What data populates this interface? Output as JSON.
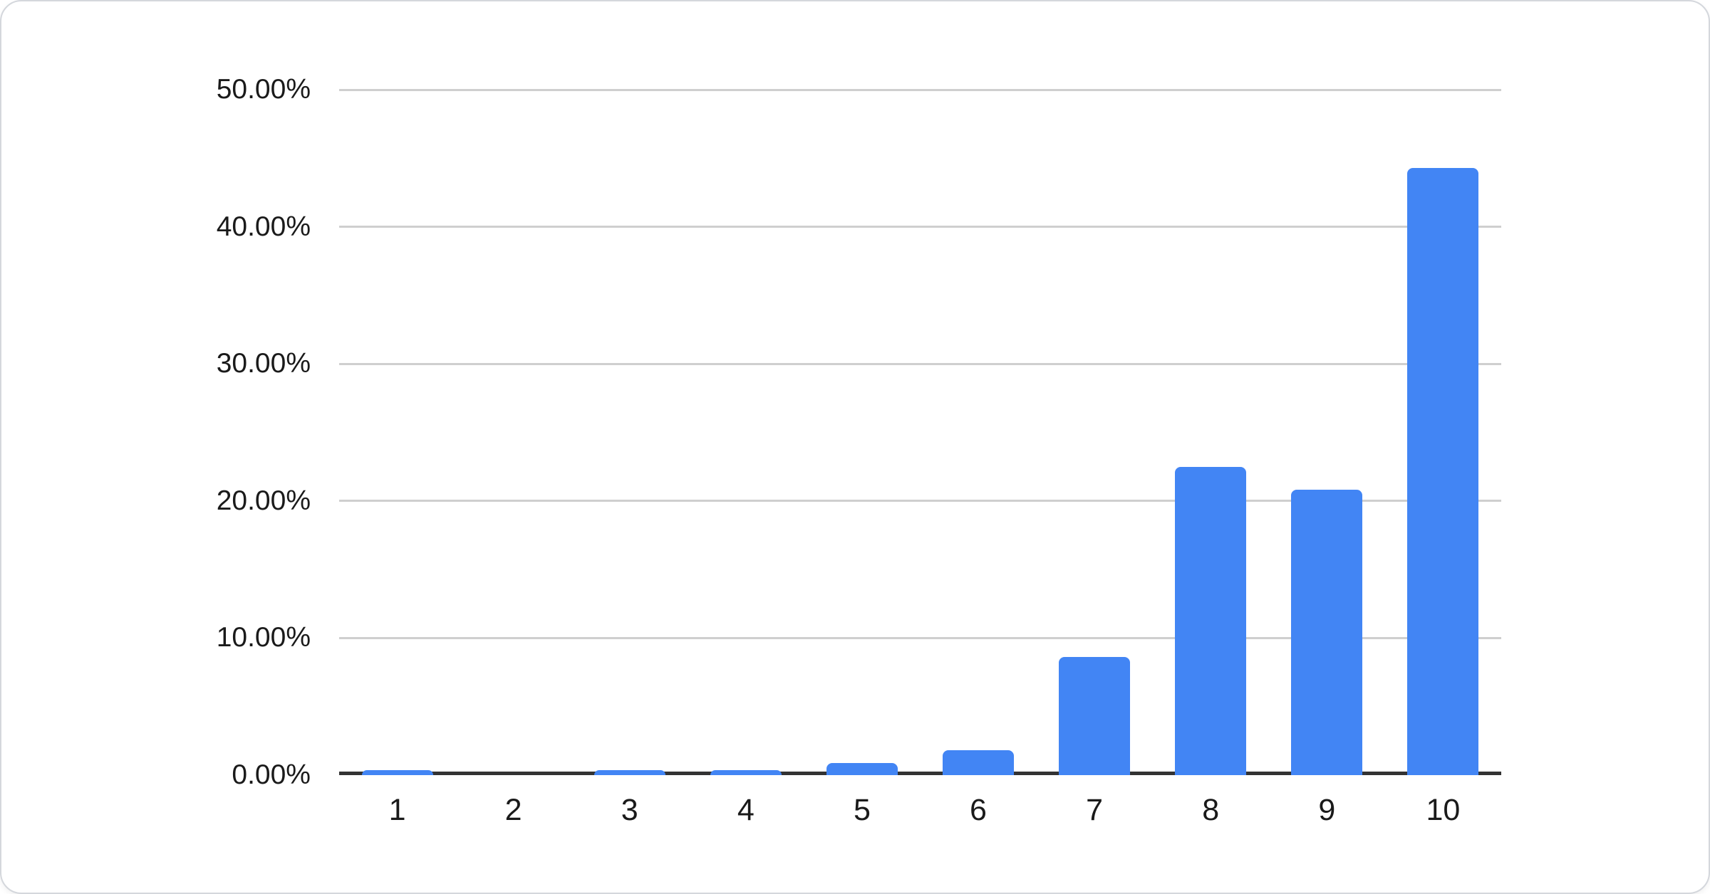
{
  "chart_data": {
    "type": "bar",
    "title": "",
    "xlabel": "",
    "ylabel": "",
    "categories": [
      "1",
      "2",
      "3",
      "4",
      "5",
      "6",
      "7",
      "8",
      "9",
      "10"
    ],
    "values": [
      0.1,
      0,
      0.1,
      0.1,
      0.9,
      1.8,
      8.6,
      22.5,
      20.8,
      44.3
    ],
    "value_unit": "%",
    "series_name": "",
    "ylim": [
      0,
      50
    ],
    "yticks": [
      {
        "value": 0,
        "label": "0.00%"
      },
      {
        "value": 10,
        "label": "10.00%"
      },
      {
        "value": 20,
        "label": "20.00%"
      },
      {
        "value": 30,
        "label": "30.00%"
      },
      {
        "value": 40,
        "label": "40.00%"
      },
      {
        "value": 50,
        "label": "50.00%"
      }
    ],
    "grid": true,
    "legend": "none",
    "colors": {
      "bar": "#4285F4",
      "gridline": "#CFCFCF",
      "baseline": "#333333",
      "label_text": "#1A1A1A",
      "card_border": "#D4D7DC",
      "card_background": "#FFFFFF"
    }
  }
}
